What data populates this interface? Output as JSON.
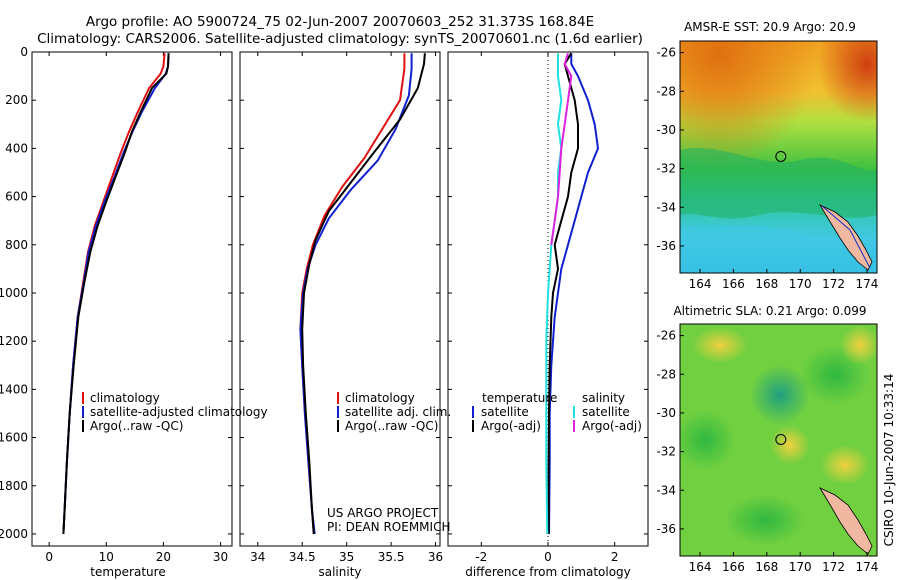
{
  "figure": {
    "title_line1": "Argo profile: AO 5900724_75 02-Jun-2007 20070603_252 31.373S 168.84E",
    "title_line2": "Climatology: CARS2006. Satellite-adjusted climatology: synTS_20070601.nc (1.6d earlier)",
    "credit_project": "US ARGO PROJECT",
    "credit_pi": "PI: DEAN ROEMMICH",
    "side_stamp": "CSIRO 10-Jun-2007 10:33:14"
  },
  "colors": {
    "climatology": "#e01010",
    "satellite": "#1020d0",
    "argo": "#000000",
    "sal_satellite": "#20e0e0",
    "sal_argo": "#e020e0"
  },
  "chart_data": [
    {
      "type": "line",
      "id": "temperature",
      "xlabel": "temperature",
      "ylabel": "",
      "xlim": [
        -3,
        32
      ],
      "ylim": [
        2050,
        0
      ],
      "y_reversed": true,
      "xticks": [
        "0",
        "10",
        "20",
        "30"
      ],
      "yticks": [
        "0",
        "200",
        "400",
        "600",
        "800",
        "1000",
        "1200",
        "1400",
        "1600",
        "1800",
        "2000"
      ],
      "legend": [
        "climatology",
        "satellite-adjusted climatology",
        "Argo(..raw -QC)"
      ],
      "series": [
        {
          "name": "climatology",
          "color": "#e01010",
          "points": [
            [
              20.2,
              5
            ],
            [
              20.0,
              60
            ],
            [
              19.5,
              90
            ],
            [
              17.5,
              150
            ],
            [
              15.5,
              250
            ],
            [
              14.0,
              330
            ],
            [
              12.5,
              420
            ],
            [
              11.0,
              520
            ],
            [
              9.5,
              620
            ],
            [
              8.0,
              720
            ],
            [
              6.8,
              830
            ],
            [
              6.0,
              950
            ],
            [
              5.0,
              1100
            ],
            [
              4.2,
              1300
            ],
            [
              3.6,
              1500
            ],
            [
              3.1,
              1700
            ],
            [
              2.7,
              1900
            ],
            [
              2.5,
              2000
            ]
          ]
        },
        {
          "name": "satellite-adjusted climatology",
          "color": "#1020d0",
          "points": [
            [
              20.9,
              5
            ],
            [
              20.8,
              60
            ],
            [
              20.4,
              90
            ],
            [
              18.5,
              150
            ],
            [
              16.2,
              250
            ],
            [
              14.6,
              330
            ],
            [
              13.0,
              420
            ],
            [
              11.4,
              520
            ],
            [
              9.7,
              620
            ],
            [
              8.2,
              720
            ],
            [
              6.9,
              830
            ],
            [
              6.1,
              950
            ],
            [
              5.0,
              1100
            ],
            [
              4.2,
              1300
            ],
            [
              3.6,
              1500
            ],
            [
              3.1,
              1700
            ],
            [
              2.7,
              1900
            ],
            [
              2.5,
              2000
            ]
          ]
        },
        {
          "name": "Argo(..raw -QC)",
          "color": "#000000",
          "points": [
            [
              20.9,
              5
            ],
            [
              20.8,
              60
            ],
            [
              20.5,
              90
            ],
            [
              18.0,
              150
            ],
            [
              16.0,
              250
            ],
            [
              14.5,
              330
            ],
            [
              13.2,
              420
            ],
            [
              11.6,
              520
            ],
            [
              10.0,
              620
            ],
            [
              8.5,
              720
            ],
            [
              7.2,
              830
            ],
            [
              6.2,
              950
            ],
            [
              5.1,
              1100
            ],
            [
              4.3,
              1300
            ],
            [
              3.6,
              1500
            ],
            [
              3.1,
              1700
            ],
            [
              2.7,
              1900
            ],
            [
              2.5,
              2000
            ]
          ]
        }
      ]
    },
    {
      "type": "line",
      "id": "salinity",
      "xlabel": "salinity",
      "ylabel": "",
      "xlim": [
        33.8,
        36.05
      ],
      "ylim": [
        2050,
        0
      ],
      "y_reversed": true,
      "xticks": [
        "34",
        "34.5",
        "35",
        "35.5",
        "36"
      ],
      "yticks": [],
      "legend": [
        "climatology",
        "satellite adj. clim.",
        "Argo(..raw -QC)"
      ],
      "series": [
        {
          "name": "climatology",
          "color": "#e01010",
          "points": [
            [
              35.65,
              5
            ],
            [
              35.65,
              70
            ],
            [
              35.6,
              200
            ],
            [
              35.4,
              320
            ],
            [
              35.2,
              440
            ],
            [
              34.95,
              560
            ],
            [
              34.75,
              680
            ],
            [
              34.62,
              800
            ],
            [
              34.55,
              900
            ],
            [
              34.5,
              1000
            ],
            [
              34.48,
              1150
            ],
            [
              34.5,
              1300
            ],
            [
              34.53,
              1500
            ],
            [
              34.57,
              1700
            ],
            [
              34.61,
              1900
            ],
            [
              34.63,
              2000
            ]
          ]
        },
        {
          "name": "satellite adj. clim.",
          "color": "#1020d0",
          "points": [
            [
              35.73,
              5
            ],
            [
              35.73,
              70
            ],
            [
              35.7,
              180
            ],
            [
              35.55,
              320
            ],
            [
              35.35,
              450
            ],
            [
              35.05,
              570
            ],
            [
              34.8,
              690
            ],
            [
              34.65,
              800
            ],
            [
              34.56,
              900
            ],
            [
              34.51,
              1000
            ],
            [
              34.48,
              1150
            ],
            [
              34.5,
              1300
            ],
            [
              34.53,
              1500
            ],
            [
              34.57,
              1700
            ],
            [
              34.61,
              1900
            ],
            [
              34.64,
              2000
            ]
          ]
        },
        {
          "name": "Argo(..raw -QC)",
          "color": "#000000",
          "points": [
            [
              35.88,
              5
            ],
            [
              35.87,
              50
            ],
            [
              35.8,
              150
            ],
            [
              35.6,
              280
            ],
            [
              35.3,
              420
            ],
            [
              35.05,
              540
            ],
            [
              34.8,
              660
            ],
            [
              34.65,
              780
            ],
            [
              34.58,
              880
            ],
            [
              34.52,
              1000
            ],
            [
              34.5,
              1150
            ],
            [
              34.51,
              1300
            ],
            [
              34.54,
              1500
            ],
            [
              34.58,
              1700
            ],
            [
              34.61,
              1900
            ],
            [
              34.63,
              2000
            ]
          ]
        }
      ]
    },
    {
      "type": "line",
      "id": "difference",
      "xlabel": "difference from climatology",
      "ylabel": "",
      "xlim": [
        -3,
        3
      ],
      "ylim": [
        2050,
        0
      ],
      "y_reversed": true,
      "xticks": [
        "-2",
        "0",
        "2"
      ],
      "yticks": [],
      "legend_temperature_header": "temperature",
      "legend_salinity_header": "salinity",
      "legend": [
        "satellite",
        "Argo(-adj)",
        "satellite",
        "Argo(-adj)"
      ],
      "series": [
        {
          "name": "satellite",
          "group": "temperature",
          "color": "#1020d0",
          "points": [
            [
              0.7,
              5
            ],
            [
              0.7,
              50
            ],
            [
              0.9,
              100
            ],
            [
              1.2,
              200
            ],
            [
              1.4,
              300
            ],
            [
              1.5,
              400
            ],
            [
              1.2,
              500
            ],
            [
              1.0,
              600
            ],
            [
              0.8,
              700
            ],
            [
              0.6,
              800
            ],
            [
              0.4,
              900
            ],
            [
              0.3,
              1000
            ],
            [
              0.2,
              1100
            ],
            [
              0.1,
              1300
            ],
            [
              0.05,
              1500
            ],
            [
              0.05,
              1700
            ],
            [
              0.03,
              2000
            ]
          ]
        },
        {
          "name": "Argo(-adj)",
          "group": "temperature",
          "color": "#000000",
          "points": [
            [
              0.7,
              5
            ],
            [
              0.5,
              50
            ],
            [
              0.6,
              100
            ],
            [
              0.8,
              200
            ],
            [
              0.9,
              300
            ],
            [
              0.9,
              400
            ],
            [
              0.7,
              500
            ],
            [
              0.6,
              600
            ],
            [
              0.4,
              700
            ],
            [
              0.2,
              800
            ],
            [
              0.3,
              900
            ],
            [
              0.15,
              1000
            ],
            [
              0.1,
              1100
            ],
            [
              0.05,
              1300
            ],
            [
              0.03,
              1500
            ],
            [
              0.02,
              1700
            ],
            [
              0.02,
              2000
            ]
          ]
        },
        {
          "name": "satellite",
          "group": "salinity",
          "color": "#20e0e0",
          "points": [
            [
              0.3,
              5
            ],
            [
              0.3,
              100
            ],
            [
              0.4,
              200
            ],
            [
              0.3,
              300
            ],
            [
              0.4,
              400
            ],
            [
              0.3,
              500
            ],
            [
              0.3,
              600
            ],
            [
              0.2,
              700
            ],
            [
              0.1,
              800
            ],
            [
              0.05,
              900
            ],
            [
              0.0,
              1000
            ],
            [
              -0.05,
              1200
            ],
            [
              -0.05,
              1500
            ],
            [
              -0.05,
              1700
            ],
            [
              -0.02,
              2000
            ]
          ]
        },
        {
          "name": "Argo(-adj)",
          "group": "salinity",
          "color": "#e020e0",
          "points": [
            [
              0.6,
              5
            ],
            [
              0.5,
              50
            ],
            [
              0.7,
              100
            ],
            [
              0.6,
              200
            ],
            [
              0.5,
              300
            ],
            [
              0.4,
              400
            ],
            [
              0.35,
              500
            ],
            [
              0.3,
              600
            ],
            [
              0.2,
              700
            ],
            [
              0.1,
              800
            ]
          ]
        }
      ]
    }
  ],
  "maps": [
    {
      "id": "sst-map",
      "title": "AMSR-E SST: 20.9 Argo: 20.9",
      "lon_ticks": [
        "164",
        "166",
        "168",
        "170",
        "172",
        "174"
      ],
      "lat_ticks": [
        "-26",
        "-28",
        "-30",
        "-32",
        "-34",
        "-36"
      ],
      "lon_range": [
        162.8,
        174.6
      ],
      "lat_range": [
        -37.4,
        -25.4
      ],
      "float_position": {
        "lon": 168.84,
        "lat": -31.373
      }
    },
    {
      "id": "sla-map",
      "title": "Altimetric SLA: 0.21 Argo: 0.099",
      "lon_ticks": [
        "164",
        "166",
        "168",
        "170",
        "172",
        "174"
      ],
      "lat_ticks": [
        "-26",
        "-28",
        "-30",
        "-32",
        "-34",
        "-36"
      ],
      "lon_range": [
        162.8,
        174.6
      ],
      "lat_range": [
        -37.4,
        -25.4
      ],
      "float_position": {
        "lon": 168.84,
        "lat": -31.373
      }
    }
  ]
}
